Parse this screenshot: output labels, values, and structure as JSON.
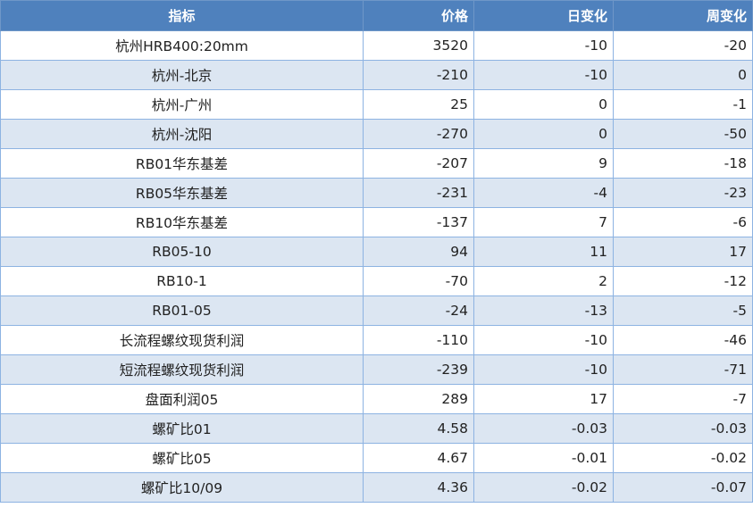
{
  "headers": [
    "指标",
    "价格",
    "日变化",
    "周变化"
  ],
  "rows": [
    [
      "杭州HRB400:20mm",
      "3520",
      "-10",
      "-20"
    ],
    [
      "杭州-北京",
      "-210",
      "-10",
      "0"
    ],
    [
      "杭州-广州",
      "25",
      "0",
      "-1"
    ],
    [
      "杭州-沈阳",
      "-270",
      "0",
      "-50"
    ],
    [
      "RB01华东基差",
      "-207",
      "9",
      "-18"
    ],
    [
      "RB05华东基差",
      "-231",
      "-4",
      "-23"
    ],
    [
      "RB10华东基差",
      "-137",
      "7",
      "-6"
    ],
    [
      "RB05-10",
      "94",
      "11",
      "17"
    ],
    [
      "RB10-1",
      "-70",
      "2",
      "-12"
    ],
    [
      "RB01-05",
      "-24",
      "-13",
      "-5"
    ],
    [
      "长流程螺纹现货利润",
      "-110",
      "-10",
      "-46"
    ],
    [
      "短流程螺纹现货利润",
      "-239",
      "-10",
      "-71"
    ],
    [
      "盘面利润05",
      "289",
      "17",
      "-7"
    ],
    [
      "螺矿比01",
      "4.58",
      "-0.03",
      "-0.03"
    ],
    [
      "螺矿比05",
      "4.67",
      "-0.01",
      "-0.02"
    ],
    [
      "螺矿比10/09",
      "4.36",
      "-0.02",
      "-0.07"
    ]
  ],
  "colors": {
    "header_bg": "#4f81bd",
    "header_text": "#ffffff",
    "row_alt_bg": "#dce6f2",
    "border": "#8db3e2"
  }
}
